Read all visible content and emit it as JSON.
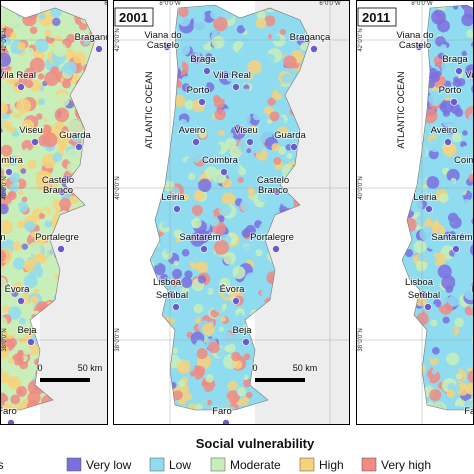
{
  "panels": [
    {},
    {
      "year": "2001"
    },
    {
      "year": "2011"
    }
  ],
  "cities": [
    [
      "Viana do",
      "Castelo"
    ],
    [
      "Braga"
    ],
    [
      "Bragança"
    ],
    [
      "Vila Real"
    ],
    [
      "Porto"
    ],
    [
      "Aveiro"
    ],
    [
      "Viseu"
    ],
    [
      "Guarda"
    ],
    [
      "Coimbra"
    ],
    [
      "Castelo",
      "Branco"
    ],
    [
      "Leiria"
    ],
    [
      "Santarém"
    ],
    [
      "Portalegre"
    ],
    [
      "Lisboa"
    ],
    [
      "Setúbal"
    ],
    [
      "Évora"
    ],
    [
      "Beja"
    ],
    [
      "Faro"
    ]
  ],
  "ocean_label": "ATLANTIC OCEAN",
  "longitudes": [
    "8°0'0\"W",
    "6°0'0\"W"
  ],
  "latitudes": [
    "42°0'0\"N",
    "40°0'0\"N",
    "38°0'0\"N"
  ],
  "scale_bar": {
    "start": "0",
    "end": "50 km"
  },
  "legend": {
    "title": "Social vulnerability",
    "items": [
      "Main cities",
      "Very low",
      "Low",
      "Moderate",
      "High",
      "Very high"
    ]
  }
}
